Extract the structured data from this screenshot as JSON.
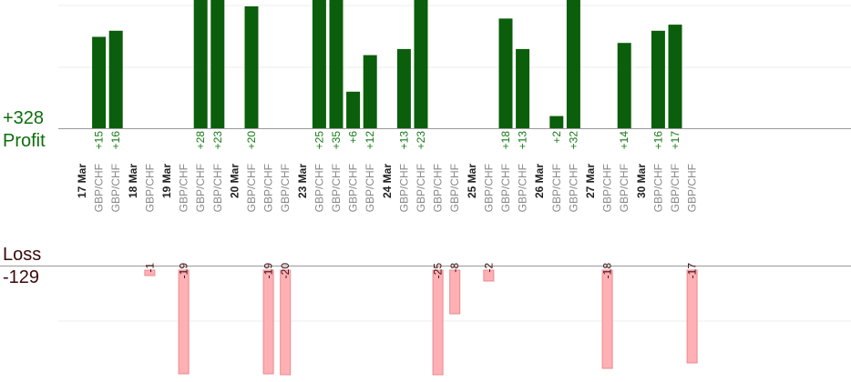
{
  "summary": {
    "profit_total": "+328",
    "profit_label": "Profit",
    "loss_label": "Loss",
    "loss_total": "-129"
  },
  "colors": {
    "profit_bar": "#0b5e0b",
    "profit_text": "#137a13",
    "loss_bar": "#ffb0b4",
    "loss_edge": "#e88a90",
    "loss_text": "#3a0a0a",
    "date_text": "#222222",
    "pair_text": "#888888",
    "axis": "#999999",
    "grid": "#eeeeee"
  },
  "chart_data": {
    "type": "bar",
    "pair": "GBP/CHF",
    "note": "Each slot is a date header or one GBP/CHF trade; profit bars above the upper axis, loss bars below the lower axis.",
    "slots": [
      {
        "date": "17 Mar"
      },
      {
        "value": 15
      },
      {
        "value": 16
      },
      {
        "date": "18 Mar"
      },
      {
        "value": -1
      },
      {
        "date": "19 Mar"
      },
      {
        "value": -19
      },
      {
        "value": 28
      },
      {
        "value": 23
      },
      {
        "date": "20 Mar"
      },
      {
        "value": 20
      },
      {
        "value": -19
      },
      {
        "value": -20
      },
      {
        "date": "23 Mar"
      },
      {
        "value": 25
      },
      {
        "value": 35
      },
      {
        "value": 6
      },
      {
        "value": 12
      },
      {
        "date": "24 Mar"
      },
      {
        "value": 13
      },
      {
        "value": 23
      },
      {
        "value": -25
      },
      {
        "value": -8
      },
      {
        "date": "25 Mar"
      },
      {
        "value": -2
      },
      {
        "value": 18
      },
      {
        "value": 13
      },
      {
        "date": "26 Mar"
      },
      {
        "value": 2
      },
      {
        "value": 32
      },
      {
        "date": "27 Mar"
      },
      {
        "value": -18
      },
      {
        "value": 14
      },
      {
        "date": "30 Mar"
      },
      {
        "value": 16
      },
      {
        "value": 17
      },
      {
        "value": -17
      }
    ],
    "profit_labels": [
      "+15",
      "+16",
      "+28",
      "+23",
      "+20",
      "+25",
      "+35",
      "+6",
      "+12",
      "+13",
      "+23",
      "+18",
      "+13",
      "+2",
      "+32",
      "+14",
      "+16",
      "+17"
    ],
    "loss_labels": [
      "-1",
      "-19",
      "-19",
      "-20",
      "-25",
      "-8",
      "-2",
      "-18",
      "-17"
    ]
  }
}
